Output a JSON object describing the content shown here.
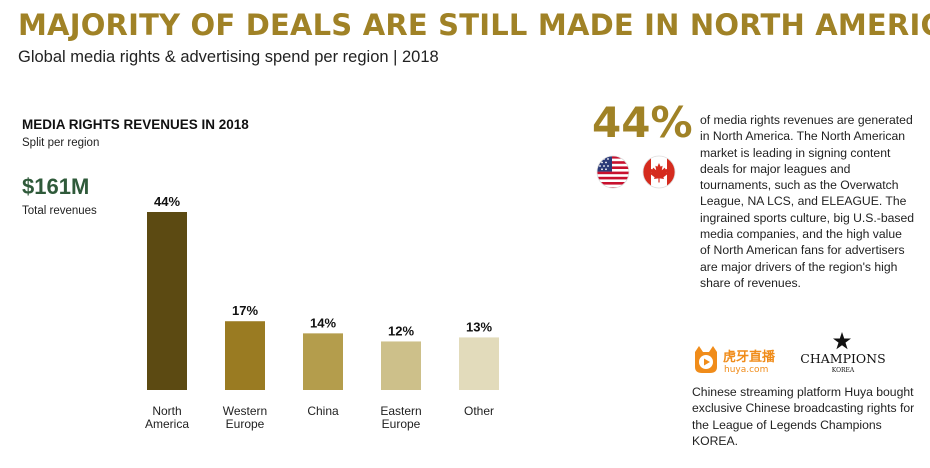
{
  "header": {
    "title": "MAJORITY OF DEALS ARE STILL MADE IN NORTH AMERICA",
    "subtitle": "Global media rights & advertising spend per region | 2018"
  },
  "left": {
    "total_value": "$161M",
    "total_label": "Total revenues"
  },
  "chart_data": {
    "type": "bar",
    "title": "MEDIA RIGHTS REVENUES IN 2018",
    "subtitle": "Split per region",
    "categories": [
      "North\nAmerica",
      "Western\nEurope",
      "China",
      "Eastern\nEurope",
      "Other"
    ],
    "values": [
      44,
      17,
      14,
      12,
      13
    ],
    "data_labels": [
      "44%",
      "17%",
      "14%",
      "12%",
      "13%"
    ],
    "colors": [
      "#5c4a12",
      "#9a7b22",
      "#b49d4c",
      "#cdc08a",
      "#e2dbbb"
    ],
    "ylim": [
      0,
      44
    ],
    "grid": false,
    "legend": false
  },
  "right": {
    "big_stat": "44%",
    "flag_icons": [
      "us-flag-icon",
      "canada-flag-icon"
    ],
    "description": "of media rights revenues are generated in North America. The North American market is leading in signing content deals for major leagues and tournaments, such as the Overwatch League, NA LCS, and ELEAGUE. The ingrained sports culture, big U.S.-based media companies, and the high value of North American fans for advertisers are major drivers of the region's high share of revenues.",
    "huya_logo_text": "虎牙直播",
    "huya_logo_sub": "huya.com",
    "champions_logo_text": "CHAMPIONS",
    "champions_logo_sub": "KOREA",
    "bottom_text": "Chinese streaming platform Huya bought exclusive Chinese broadcasting rights for the League of Legends Champions KOREA."
  },
  "colors": {
    "accent_gold": "#a08226",
    "total_green": "#2f5a3a"
  }
}
